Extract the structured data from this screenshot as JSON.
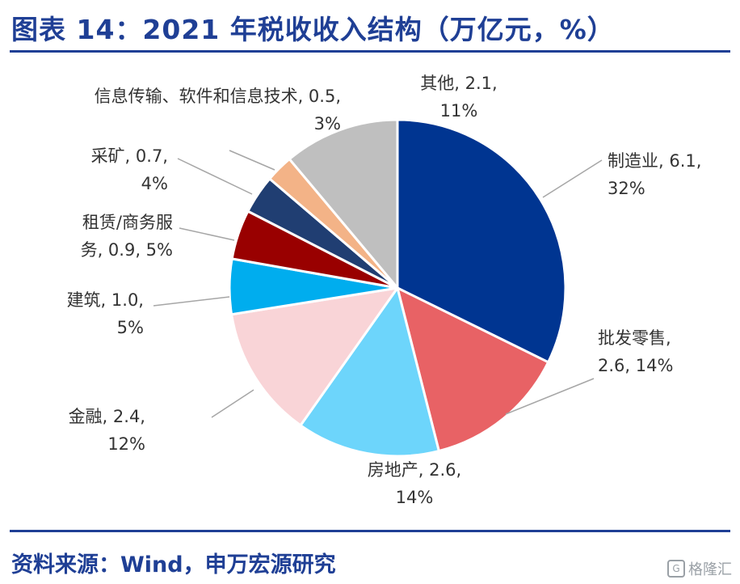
{
  "title": "图表 14：2021 年税收收入结构（万亿元，%）",
  "source": "资料来源：Wind，申万宏源研究",
  "watermark": "格隆汇",
  "watermark_logo": "G",
  "chart_data": {
    "type": "pie",
    "title": "图表 14：2021 年税收收入结构（万亿元，%）",
    "unit": "万亿元，%",
    "slices": [
      {
        "name": "制造业",
        "value": 6.1,
        "pct": "32%",
        "label_lines": [
          "制造业, 6.1,",
          "32%"
        ],
        "color": "#003591"
      },
      {
        "name": "批发零售",
        "value": 2.6,
        "pct": "14%",
        "label_lines": [
          "批发零售,",
          "2.6, 14%"
        ],
        "color": "#e86265"
      },
      {
        "name": "房地产",
        "value": 2.6,
        "pct": "14%",
        "label_lines": [
          "房地产, 2.6,",
          "14%"
        ],
        "color": "#6dd5fb"
      },
      {
        "name": "金融",
        "value": 2.4,
        "pct": "12%",
        "label_lines": [
          "金融, 2.4,",
          "12%"
        ],
        "color": "#f9d4d7"
      },
      {
        "name": "建筑",
        "value": 1.0,
        "pct": "5%",
        "label_lines": [
          "建筑, 1.0,",
          "5%"
        ],
        "color": "#00adee"
      },
      {
        "name": "租赁/商务服务",
        "value": 0.9,
        "pct": "5%",
        "label_lines": [
          "租赁/商务服",
          "务, 0.9, 5%"
        ],
        "color": "#990000"
      },
      {
        "name": "采矿",
        "value": 0.7,
        "pct": "4%",
        "label_lines": [
          "采矿, 0.7,",
          "4%"
        ],
        "color": "#203e72"
      },
      {
        "name": "信息传输、软件和信息技术",
        "value": 0.5,
        "pct": "3%",
        "label_lines": [
          "信息传输、软件和信息技术, 0.5,",
          "3%"
        ],
        "color": "#f3b387"
      },
      {
        "name": "其他",
        "value": 2.1,
        "pct": "11%",
        "label_lines": [
          "其他, 2.1,",
          "11%"
        ],
        "color": "#bfbfbf"
      }
    ]
  }
}
